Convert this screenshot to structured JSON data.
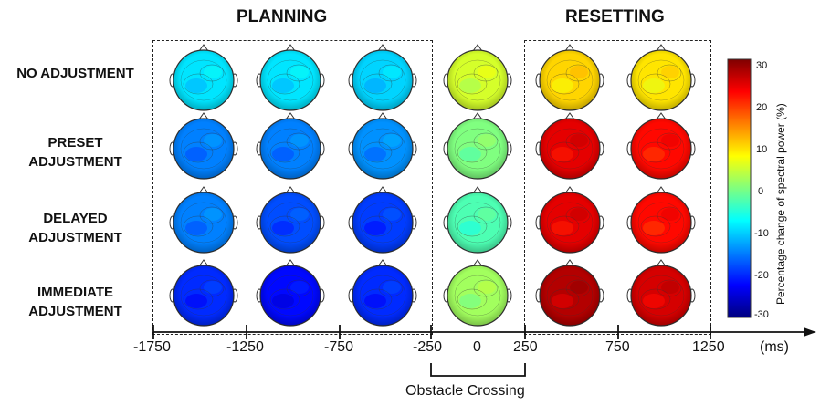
{
  "headers": {
    "planning": "PLANNING",
    "resetting": "RESETTING"
  },
  "rows": [
    {
      "line1": "NO ADJUSTMENT",
      "line2": ""
    },
    {
      "line1": "PRESET",
      "line2": "ADJUSTMENT"
    },
    {
      "line1": "DELAYED",
      "line2": "ADJUSTMENT"
    },
    {
      "line1": "IMMEDIATE",
      "line2": "ADJUSTMENT"
    }
  ],
  "axis": {
    "ticks": [
      "-1750",
      "-1250",
      "-750",
      "-250",
      "0",
      "250",
      "750",
      "1250"
    ],
    "unit": "(ms)",
    "bracket_label": "Obstacle Crossing"
  },
  "colorbar": {
    "ticks": [
      "30",
      "20",
      "10",
      "0",
      "-10",
      "-20",
      "-30"
    ],
    "title": "Percentage change of spectral power (%)",
    "range": [
      -30,
      30
    ]
  },
  "topomaps": [
    [
      -9,
      -9,
      -10,
      5,
      10,
      9
    ],
    [
      -15,
      -15,
      -14,
      0,
      24,
      22
    ],
    [
      -15,
      -18,
      -19,
      -3,
      24,
      22
    ],
    [
      -20,
      -22,
      -20,
      2,
      27,
      25
    ]
  ]
}
